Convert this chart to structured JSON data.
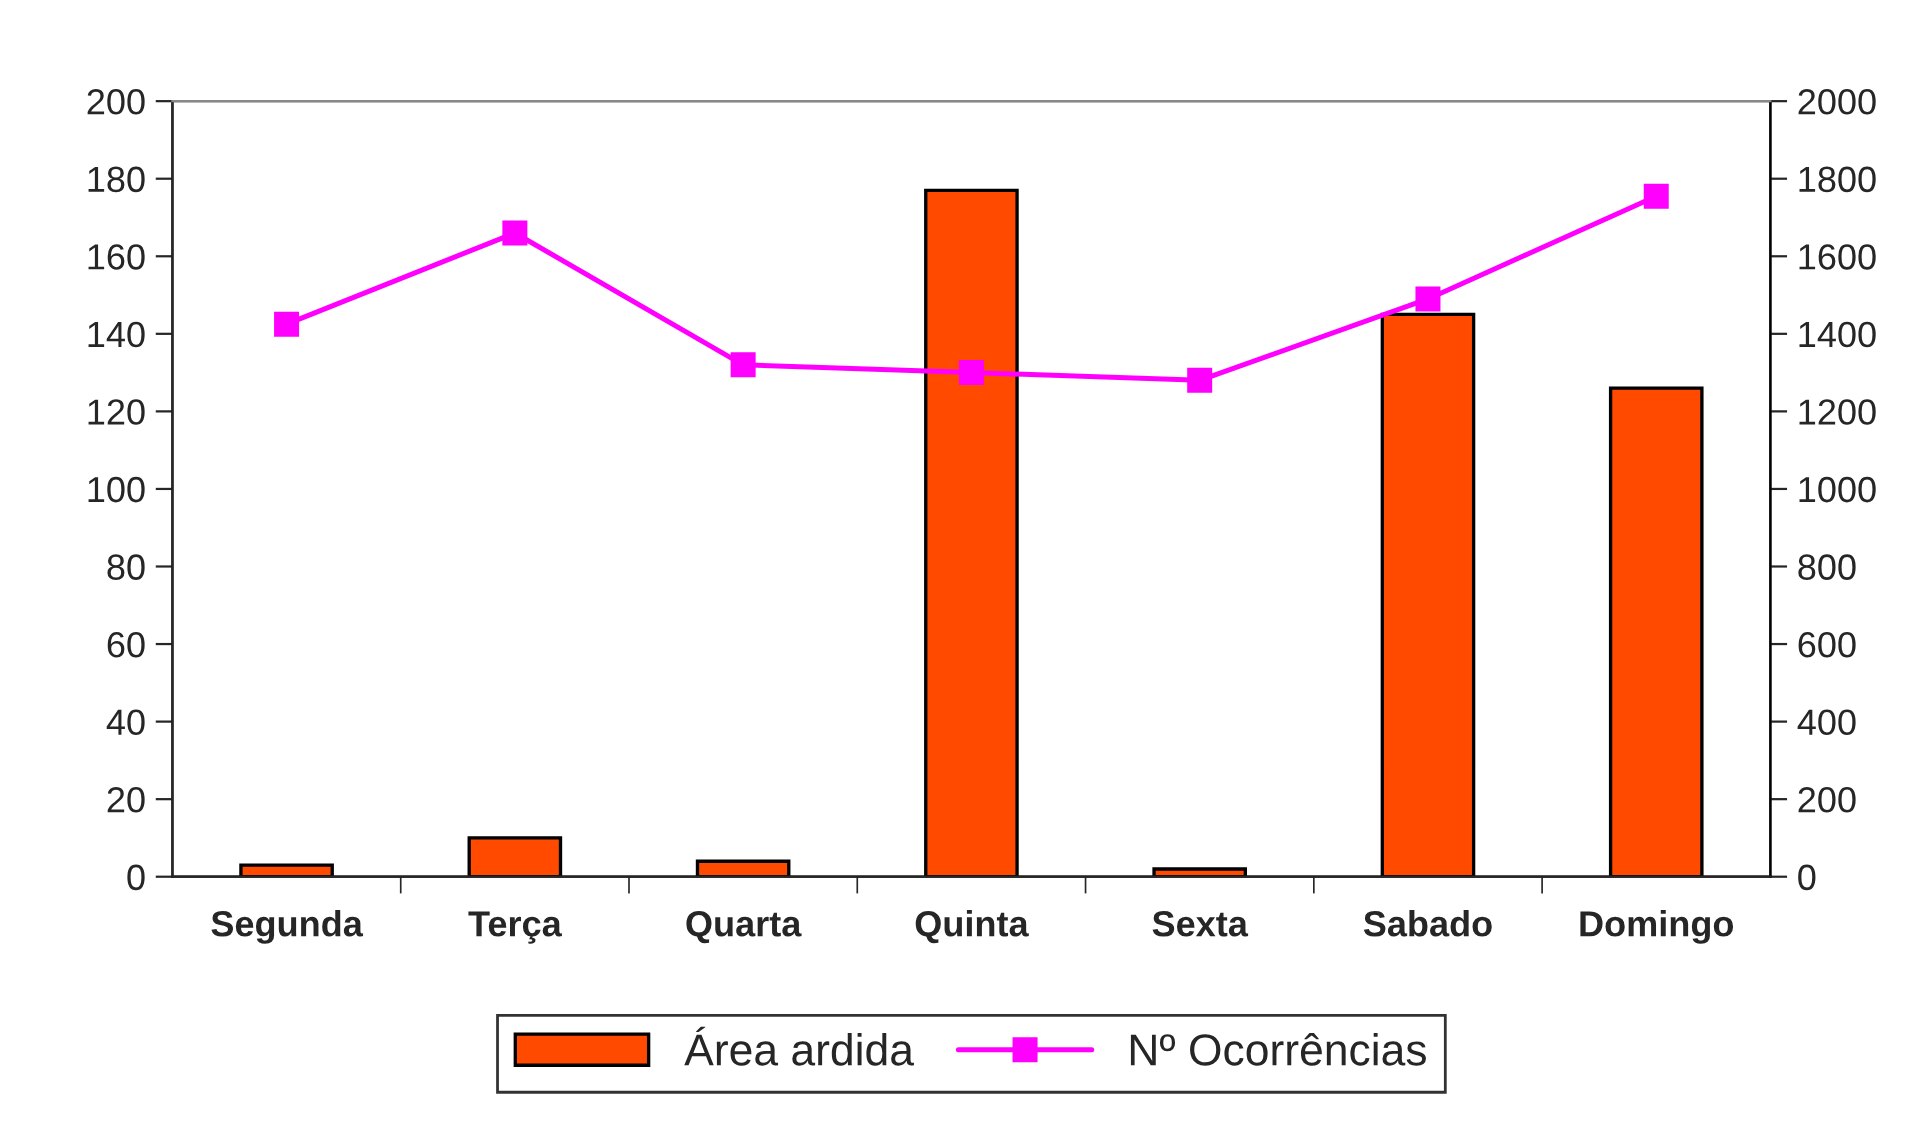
{
  "chart_data": {
    "type": "bar",
    "categories": [
      "Segunda",
      "Terça",
      "Quarta",
      "Quinta",
      "Sexta",
      "Sabado",
      "Domingo"
    ],
    "series": [
      {
        "name": "Área ardida",
        "color": "#ff4a00",
        "values": [
          3,
          10,
          4,
          177,
          2,
          145,
          126
        ]
      },
      {
        "name": "Nº Ocorrências",
        "type": "line",
        "axis": "y2",
        "color": "#ff00ff",
        "values": [
          1425,
          1660,
          1320,
          1300,
          1280,
          1490,
          1755
        ]
      }
    ],
    "ylim": [
      0,
      200
    ],
    "yticks": [
      0,
      20,
      40,
      60,
      80,
      100,
      120,
      140,
      160,
      180,
      200
    ],
    "y2lim": [
      0,
      2000
    ],
    "y2ticks": [
      0,
      200,
      400,
      600,
      800,
      1000,
      1200,
      1400,
      1600,
      1800,
      2000
    ],
    "marker": "square",
    "grid": false,
    "legend": "bottom"
  }
}
